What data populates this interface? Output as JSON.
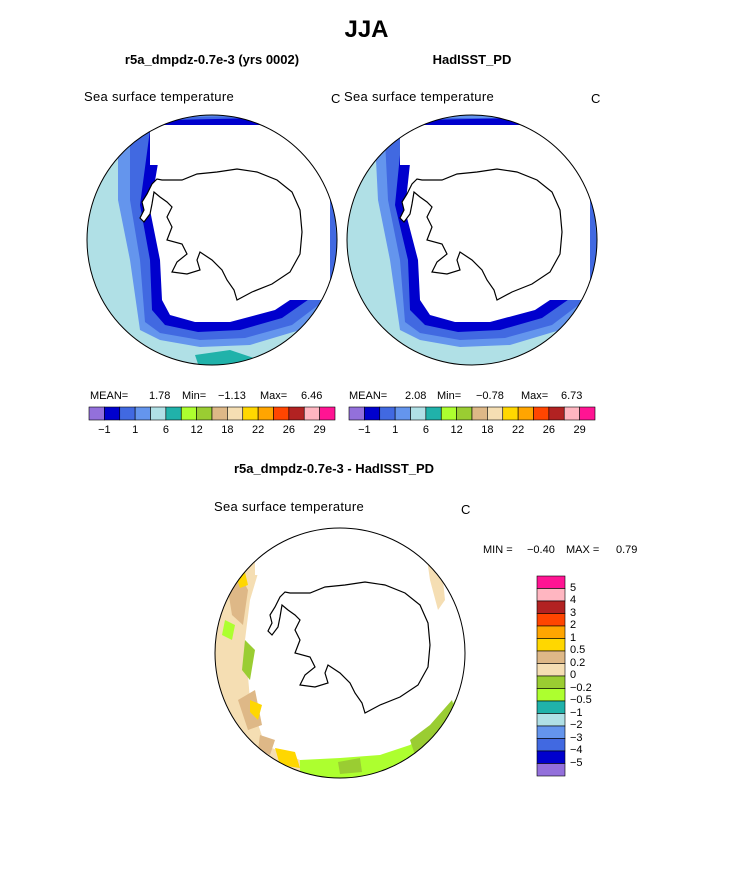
{
  "figure": {
    "title": "JJA"
  },
  "panels": [
    {
      "title": "r5a_dmpdz-0.7e-3 (yrs 0002)",
      "variable": "Sea surface temperature",
      "units": "C",
      "stats": {
        "mean_label": "MEAN=",
        "mean": "1.78",
        "min_label": "Min=",
        "min": "−1.13",
        "max_label": "Max=",
        "max": "6.46"
      }
    },
    {
      "title": "HadISST_PD",
      "variable": "Sea surface temperature",
      "units": "C",
      "stats": {
        "mean_label": "MEAN=",
        "mean": "2.08",
        "min_label": "Min=",
        "min": "−0.78",
        "max_label": "Max=",
        "max": "6.73"
      }
    }
  ],
  "sst_colorbar": {
    "colors": [
      "#9370db",
      "#0000cd",
      "#4169e1",
      "#6495ed",
      "#b0e0e6",
      "#20b2aa",
      "#adff2f",
      "#9acd32",
      "#deb887",
      "#f5deb3",
      "#ffd700",
      "#ffa500",
      "#ff4500",
      "#b22222",
      "#ffb6c1",
      "#ff1493"
    ],
    "tick_labels": [
      "−1",
      "1",
      "6",
      "12",
      "18",
      "22",
      "26",
      "29"
    ]
  },
  "diff_panel": {
    "title": "r5a_dmpdz-0.7e-3 - HadISST_PD",
    "variable": "Sea surface temperature",
    "units": "C",
    "stats": {
      "min_label": "MIN =",
      "min": "−0.40",
      "max_label": "MAX =",
      "max": "0.79"
    }
  },
  "diff_colorbar": {
    "colors": [
      "#ff1493",
      "#ffb6c1",
      "#b22222",
      "#ff4500",
      "#ffa500",
      "#ffd700",
      "#deb887",
      "#f5deb3",
      "#9acd32",
      "#adff2f",
      "#20b2aa",
      "#b0e0e6",
      "#6495ed",
      "#4169e1",
      "#0000cd",
      "#9370db"
    ],
    "tick_labels": [
      "5",
      "4",
      "3",
      "2",
      "1",
      "0.5",
      "0.2",
      "0",
      "−0.2",
      "−0.5",
      "−1",
      "−2",
      "−3",
      "−4",
      "−5"
    ]
  }
}
